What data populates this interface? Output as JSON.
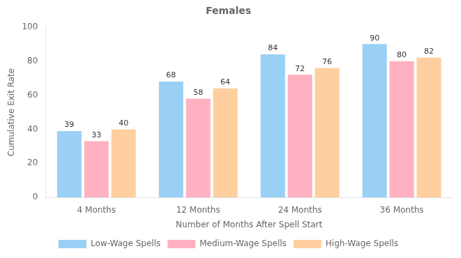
{
  "chart_data": {
    "type": "bar",
    "title": "Females",
    "xlabel": "Number of Months After Spell Start",
    "ylabel": "Cumulative Exit Rate",
    "categories": [
      "4 Months",
      "12 Months",
      "24 Months",
      "36 Months"
    ],
    "series": [
      {
        "name": "Low-Wage Spells",
        "values": [
          39,
          68,
          84,
          90
        ]
      },
      {
        "name": "Medium-Wage Spells",
        "values": [
          33,
          58,
          72,
          80
        ]
      },
      {
        "name": "High-Wage Spells",
        "values": [
          40,
          64,
          76,
          82
        ]
      }
    ],
    "ylim": [
      0,
      100
    ],
    "yticks": [
      0,
      20,
      40,
      60,
      80,
      100
    ],
    "grid": false,
    "legend": "bottom",
    "data_labels": true
  }
}
